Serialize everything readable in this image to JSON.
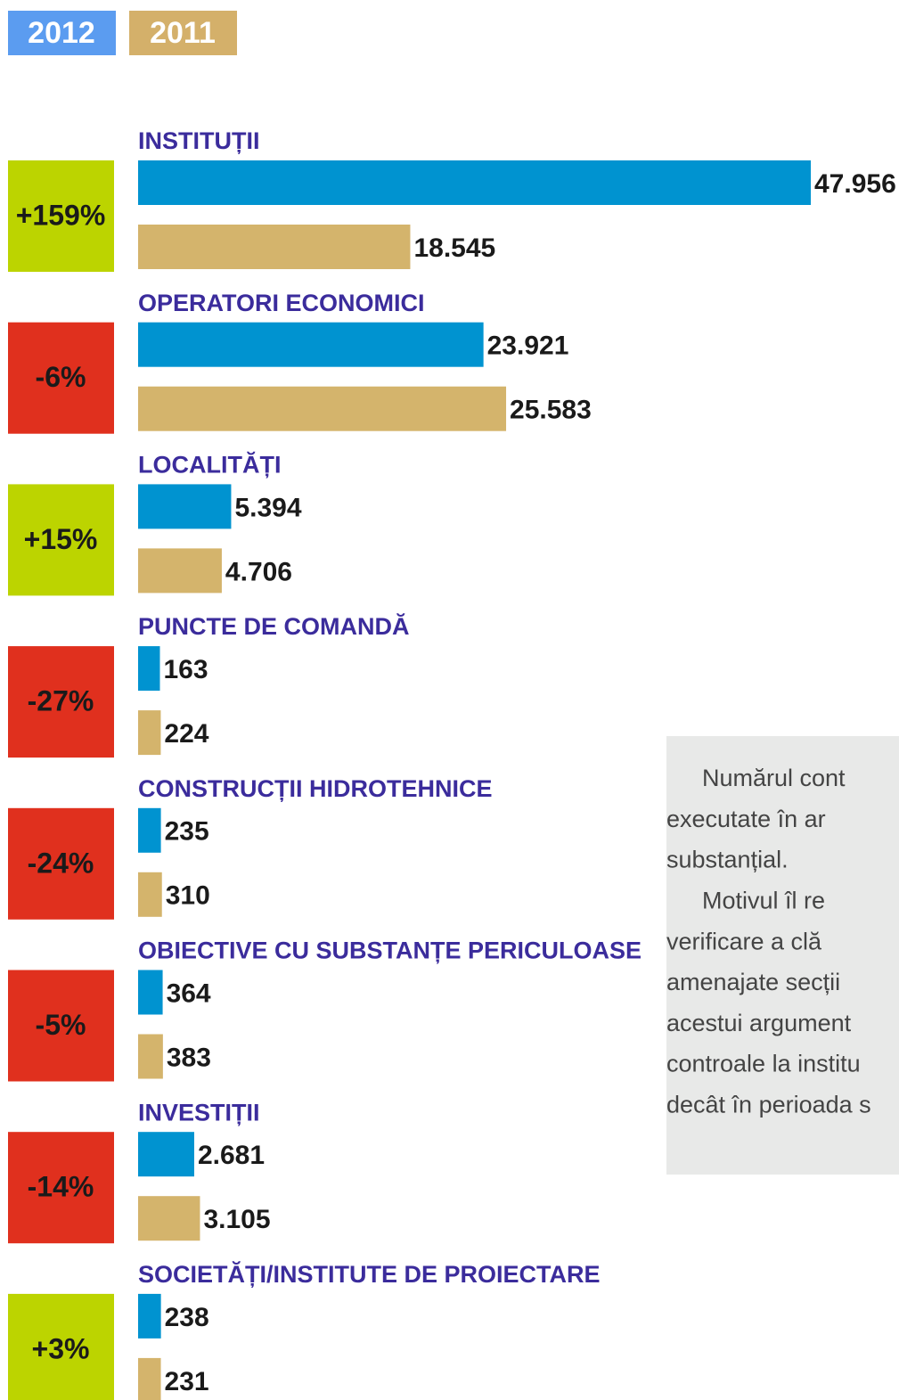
{
  "chart_data": {
    "type": "bar",
    "orientation": "horizontal",
    "categories": [
      "INSTITUȚII",
      "OPERATORI ECONOMICI",
      "LOCALITĂȚI",
      "PUNCTE DE COMANDĂ",
      "CONSTRUCȚII HIDROTEHNICE",
      "OBIECTIVE CU SUBSTANȚE PERICULOASE",
      "INVESTIȚII",
      "SOCIETĂȚI/INSTITUTE DE PROIECTARE"
    ],
    "series": [
      {
        "name": "2012",
        "color": "#0093d0",
        "legend_color": "#5b9cf0",
        "values": [
          47956,
          23921,
          5394,
          163,
          235,
          364,
          2681,
          238
        ],
        "value_labels": [
          "47.956",
          "23.921",
          "5.394",
          "163",
          "235",
          "364",
          "2.681",
          "238"
        ]
      },
      {
        "name": "2011",
        "color": "#d4b46c",
        "legend_color": "#d4b06a",
        "values": [
          18545,
          25583,
          4706,
          224,
          310,
          383,
          3105,
          231
        ],
        "value_labels": [
          "18.545",
          "25.583",
          "4.706",
          "224",
          "310",
          "383",
          "3.105",
          "231"
        ]
      }
    ],
    "changes": [
      {
        "value": 159,
        "label": "+159%"
      },
      {
        "value": -6,
        "label": "-6%"
      },
      {
        "value": 15,
        "label": "+15%"
      },
      {
        "value": -27,
        "label": "-27%"
      },
      {
        "value": -24,
        "label": "-24%"
      },
      {
        "value": -5,
        "label": "-5%"
      },
      {
        "value": -14,
        "label": "-14%"
      },
      {
        "value": 3,
        "label": "+3%"
      }
    ],
    "change_colors": {
      "positive": "#bcd400",
      "negative": "#e0301e"
    }
  },
  "note": {
    "lines": [
      "Numărul cont",
      "executate în ar",
      "substanțial.",
      "Motivul îl re",
      "verificare a  clă",
      "amenajate secții",
      "acestui argument",
      "controale la institu",
      "decât în perioada s"
    ]
  }
}
